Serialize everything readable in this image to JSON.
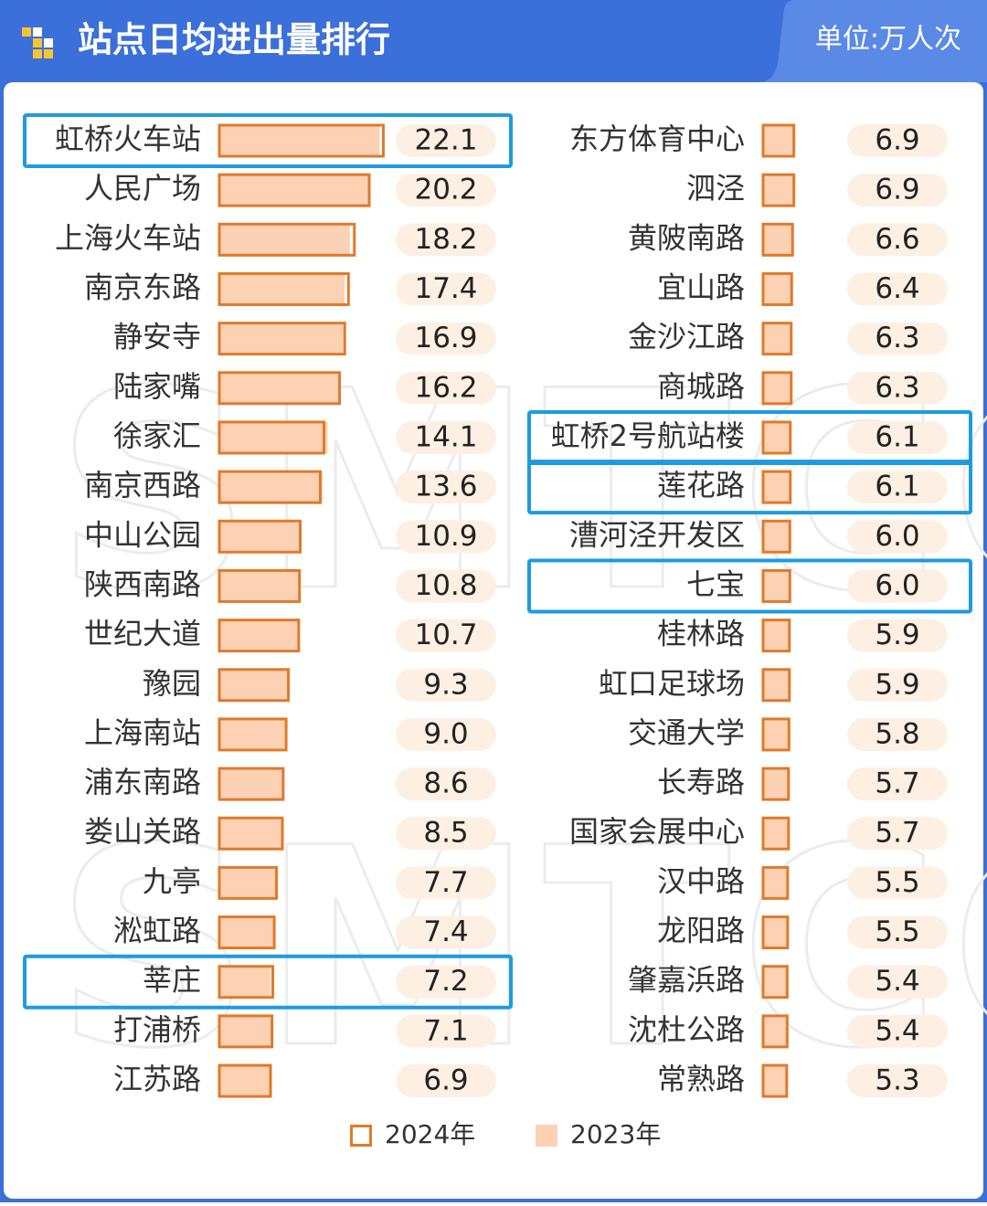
{
  "header": {
    "title": "站点日均进出量排行",
    "unit": "单位:万人次"
  },
  "watermark": "SMTCG",
  "chart_data": [
    {
      "type": "hbar",
      "categories": [
        "虹桥火车站",
        "人民广场",
        "上海火车站",
        "南京东路",
        "静安寺",
        "陆家嘴",
        "徐家汇",
        "南京西路",
        "中山公园",
        "陕西南路",
        "世纪大道",
        "豫园",
        "上海南站",
        "浦东南路",
        "娄山关路",
        "九亭",
        "淞虹路",
        "莘庄",
        "打浦桥",
        "江苏路"
      ],
      "xlim": [
        0,
        25
      ],
      "series": [
        {
          "name": "2024年",
          "color": "#e07a2a",
          "style": "outline",
          "values": [
            22.1,
            20.2,
            18.2,
            17.4,
            16.9,
            16.2,
            14.1,
            13.6,
            10.9,
            10.8,
            10.7,
            9.3,
            9.0,
            8.6,
            8.5,
            7.7,
            7.4,
            7.2,
            7.1,
            6.9
          ],
          "value_labels": [
            "22.1",
            "20.2",
            "18.2",
            "17.4",
            "16.9",
            "16.2",
            "14.1",
            "13.6",
            "10.9",
            "10.8",
            "10.7",
            "9.3",
            "9.0",
            "8.6",
            "8.5",
            "7.7",
            "7.4",
            "7.2",
            "7.1",
            "6.9"
          ]
        },
        {
          "name": "2023年",
          "color": "#fcd1b4",
          "style": "fill",
          "values": [
            21.6,
            20.0,
            17.6,
            16.9,
            16.7,
            16.0,
            14.6,
            13.9,
            10.8,
            10.7,
            10.6,
            9.2,
            8.8,
            8.5,
            8.6,
            7.6,
            7.3,
            6.9,
            7.0,
            6.8
          ]
        }
      ],
      "highlight": [
        0,
        17
      ]
    },
    {
      "type": "hbar",
      "categories": [
        "东方体育中心",
        "泗泾",
        "黄陂南路",
        "宜山路",
        "金沙江路",
        "商城路",
        "虹桥2号航站楼",
        "莲花路",
        "漕河泾开发区",
        "七宝",
        "桂林路",
        "虹口足球场",
        "交通大学",
        "长寿路",
        "国家会展中心",
        "汉中路",
        "龙阳路",
        "肇嘉浜路",
        "沈杜公路",
        "常熟路"
      ],
      "xlim": [
        0,
        25
      ],
      "series": [
        {
          "name": "2024年",
          "color": "#e07a2a",
          "style": "outline",
          "values": [
            6.9,
            6.9,
            6.6,
            6.4,
            6.3,
            6.3,
            6.1,
            6.1,
            6.0,
            6.0,
            5.9,
            5.9,
            5.8,
            5.7,
            5.7,
            5.5,
            5.5,
            5.4,
            5.4,
            5.3
          ],
          "value_labels": [
            "6.9",
            "6.9",
            "6.6",
            "6.4",
            "6.3",
            "6.3",
            "6.1",
            "6.1",
            "6.0",
            "6.0",
            "5.9",
            "5.9",
            "5.8",
            "5.7",
            "5.7",
            "5.5",
            "5.5",
            "5.4",
            "5.4",
            "5.3"
          ]
        },
        {
          "name": "2023年",
          "color": "#fcd1b4",
          "style": "fill",
          "values": [
            6.8,
            6.9,
            6.5,
            6.3,
            6.2,
            6.2,
            5.9,
            6.0,
            5.9,
            5.8,
            5.8,
            5.9,
            5.7,
            5.6,
            5.6,
            5.4,
            5.6,
            5.3,
            5.3,
            5.2
          ]
        }
      ],
      "highlight": [
        6,
        7,
        9
      ]
    }
  ]
}
